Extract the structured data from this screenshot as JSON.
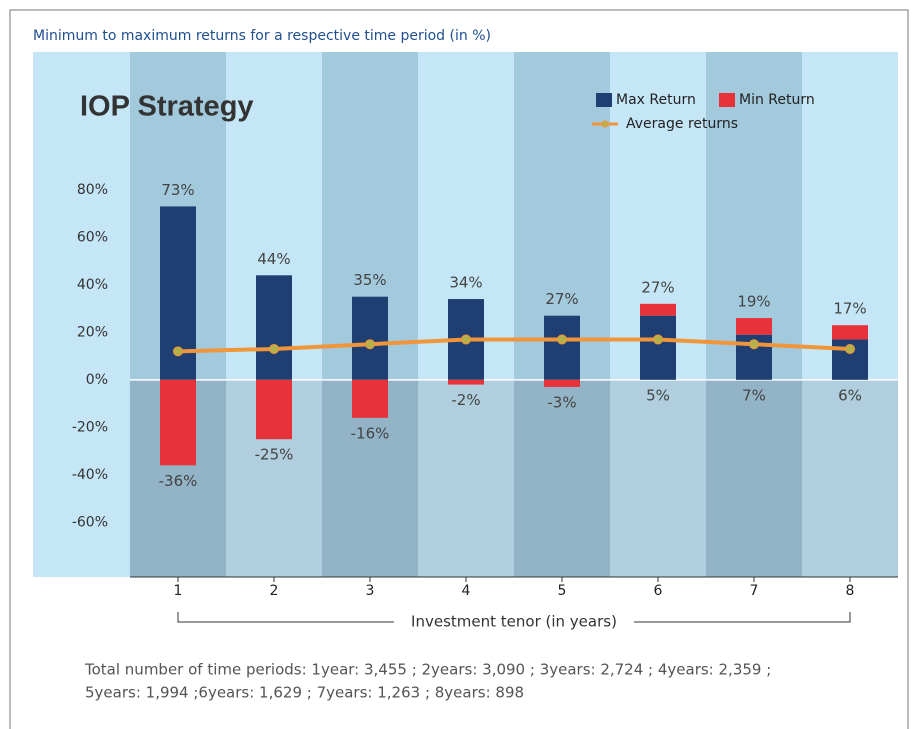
{
  "chart_data": {
    "type": "bar",
    "title": "Minimum to maximum returns for a respective time period (in %)",
    "subtitle": "IOP Strategy",
    "categories": [
      "1",
      "2",
      "3",
      "4",
      "5",
      "6",
      "7",
      "8"
    ],
    "series": [
      {
        "name": "Max Return",
        "color": "#1f3f73",
        "values": [
          73,
          44,
          35,
          34,
          27,
          27,
          19,
          17
        ],
        "value_labels": [
          "73%",
          "44%",
          "35%",
          "34%",
          "27%",
          "27%",
          "19%",
          "17%"
        ]
      },
      {
        "name": "Min Return",
        "color": "#e8323a",
        "values": [
          -36,
          -25,
          -16,
          -2,
          -3,
          5,
          7,
          6
        ],
        "value_labels": [
          "-36%",
          "-25%",
          "-16%",
          "-2%",
          "-3%",
          "5%",
          "7%",
          "6%"
        ]
      },
      {
        "name": "Average returns",
        "type": "line",
        "color": "#f0953a",
        "marker_color": "#b5b04a",
        "values": [
          12,
          13,
          15,
          17,
          17,
          17,
          15,
          13
        ]
      }
    ],
    "ylim": [
      -83,
      138
    ],
    "yticks": [
      {
        "value": -60,
        "label": "-60%"
      },
      {
        "value": -40,
        "label": "-40%"
      },
      {
        "value": -20,
        "label": "-20%"
      },
      {
        "value": 0,
        "label": "0%"
      },
      {
        "value": 20,
        "label": "20%"
      },
      {
        "value": 40,
        "label": "40%"
      },
      {
        "value": 60,
        "label": "60%"
      },
      {
        "value": 80,
        "label": "80%"
      }
    ],
    "xlabel": "Investment tenor (in years)",
    "footnote": [
      "Total number of time periods: 1year: 3,455 ; 2years: 3,090 ; 3years: 2,724 ; 4years: 2,359 ;",
      "5years: 1,994 ;6years: 1,629 ; 7years: 1,263 ; 8years: 898"
    ],
    "legend": "top-right"
  }
}
